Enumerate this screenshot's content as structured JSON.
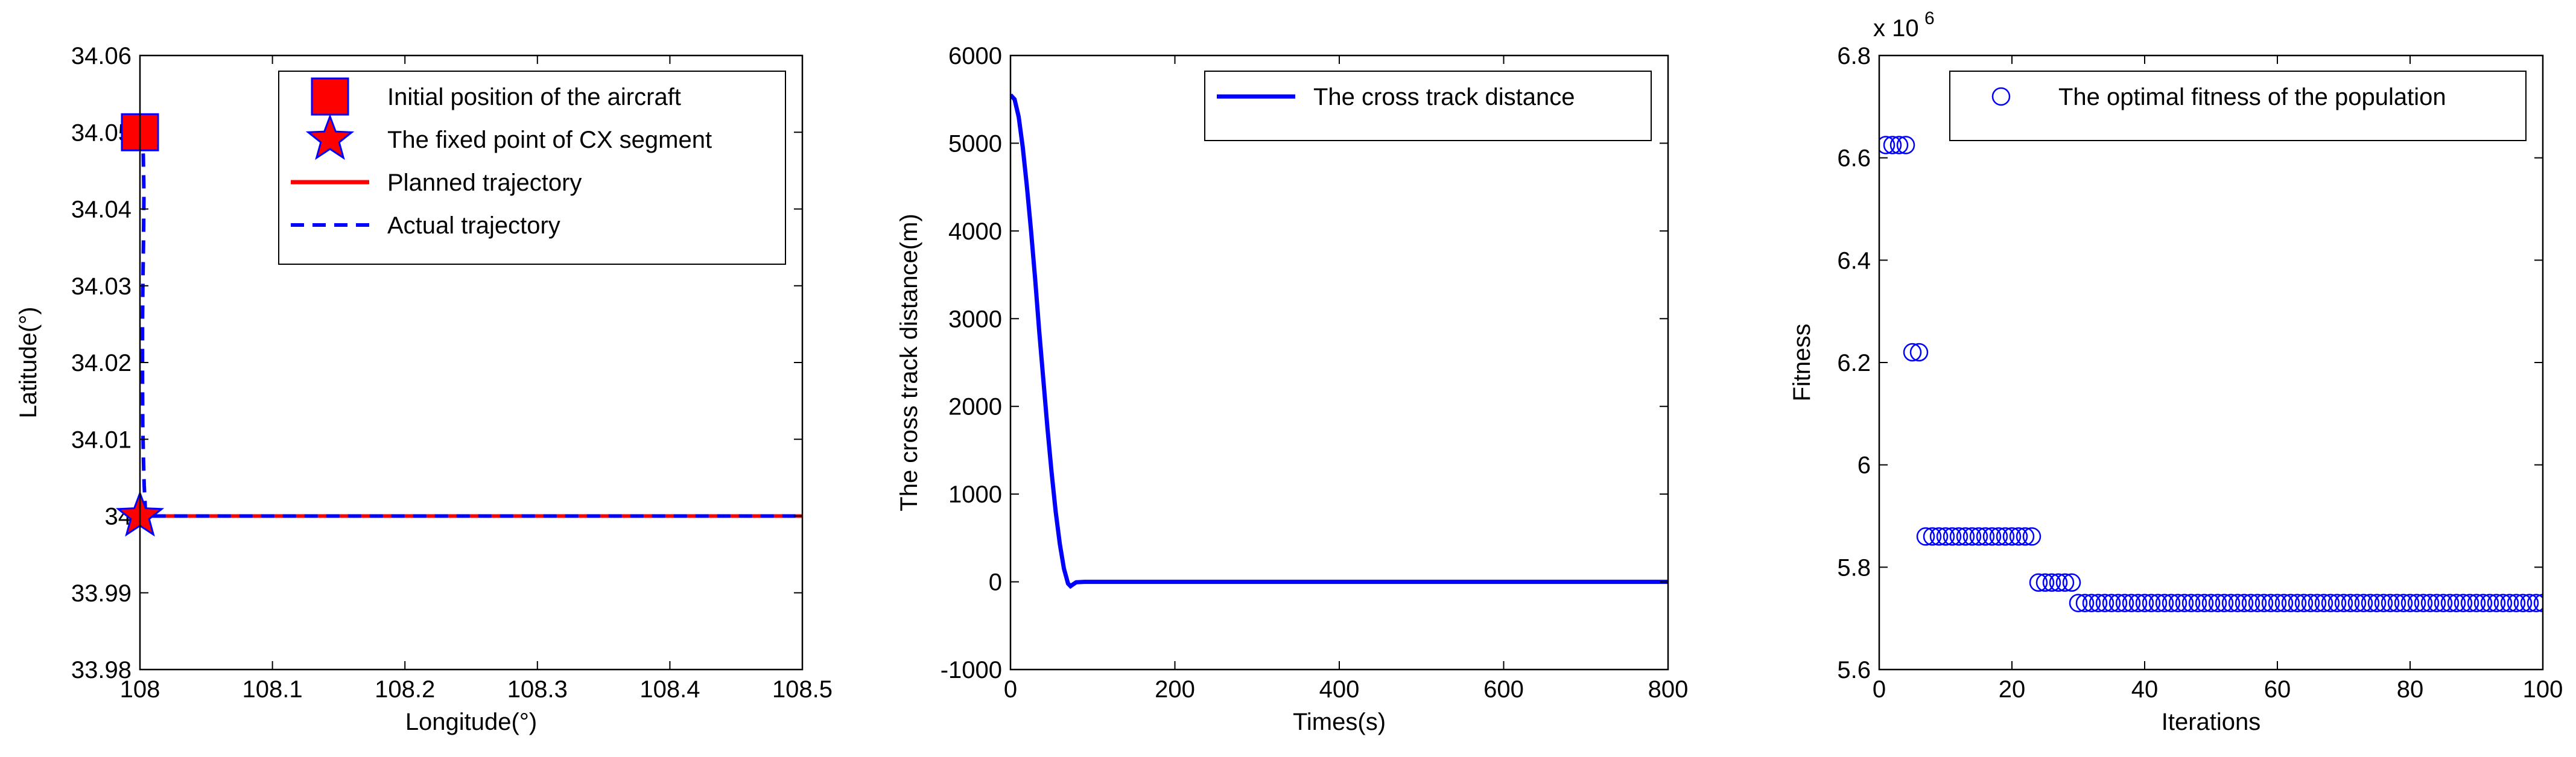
{
  "chart_data": [
    {
      "type": "line",
      "xlabel": "Longitude(°)",
      "ylabel": "Latitude(°)",
      "xlim": [
        108,
        108.5
      ],
      "ylim": [
        33.98,
        34.06
      ],
      "xticks": [
        108,
        108.1,
        108.2,
        108.3,
        108.4,
        108.5
      ],
      "yticks": [
        33.98,
        33.99,
        34,
        34.01,
        34.02,
        34.03,
        34.04,
        34.05,
        34.06
      ],
      "xtick_labels": [
        "108",
        "108.1",
        "108.2",
        "108.3",
        "108.4",
        "108.5"
      ],
      "ytick_labels": [
        "33.98",
        "33.99",
        "34",
        "34.01",
        "34.02",
        "34.03",
        "34.04",
        "34.05",
        "34.06"
      ],
      "grid": false,
      "legend_position": "top-right",
      "legend": [
        {
          "label": "Initial position of the aircraft",
          "marker": "square",
          "color": "#ff0000"
        },
        {
          "label": "The fixed point of CX segment",
          "marker": "star",
          "color": "#ff0000"
        },
        {
          "label": "Planned trajectory",
          "style": "solid",
          "color": "#ff0000"
        },
        {
          "label": "Actual trajectory",
          "style": "dashed",
          "color": "#0000ff"
        }
      ],
      "points": [
        {
          "name": "Initial position of the aircraft",
          "x": 108.0,
          "y": 34.05
        },
        {
          "name": "The fixed point of CX segment",
          "x": 108.0,
          "y": 34.0
        }
      ],
      "series": [
        {
          "name": "Planned trajectory",
          "x": [
            108.0,
            108.5
          ],
          "y": [
            34.0,
            34.0
          ]
        },
        {
          "name": "Actual trajectory",
          "x": [
            108.0,
            108.0015,
            108.0025,
            108.003,
            108.0027,
            108.0022,
            108.0019,
            108.0019,
            108.0021,
            108.0027,
            108.0032,
            108.0038,
            108.004,
            108.0045,
            108.006,
            108.5
          ],
          "y": [
            34.05,
            34.0495,
            34.047,
            34.042,
            34.036,
            34.03,
            34.025,
            34.018,
            34.012,
            34.007,
            34.004,
            34.002,
            34.001,
            34.0,
            34.0,
            34.0
          ]
        }
      ]
    },
    {
      "type": "line",
      "xlabel": "Times(s)",
      "ylabel": "The cross track distance(m)",
      "xlim": [
        0,
        800
      ],
      "ylim": [
        -1000,
        6000
      ],
      "xticks": [
        0,
        200,
        400,
        600,
        800
      ],
      "yticks": [
        -1000,
        0,
        1000,
        2000,
        3000,
        4000,
        5000,
        6000
      ],
      "xtick_labels": [
        "0",
        "200",
        "400",
        "600",
        "800"
      ],
      "ytick_labels": [
        "-1000",
        "0",
        "1000",
        "2000",
        "3000",
        "4000",
        "5000",
        "6000"
      ],
      "grid": false,
      "legend_position": "top-right",
      "legend": [
        {
          "label": "The cross track distance",
          "style": "solid",
          "color": "#0000ff"
        }
      ],
      "series": [
        {
          "name": "The cross track distance",
          "x": [
            0,
            5,
            10,
            15,
            20,
            25,
            30,
            35,
            40,
            45,
            50,
            55,
            60,
            65,
            70,
            73,
            76,
            80,
            90,
            100,
            150,
            200,
            300,
            400,
            500,
            600,
            700,
            800
          ],
          "y": [
            5550,
            5500,
            5300,
            4950,
            4500,
            4000,
            3450,
            2850,
            2300,
            1750,
            1250,
            800,
            430,
            150,
            -20,
            -50,
            -30,
            -5,
            0,
            0,
            0,
            0,
            0,
            0,
            0,
            0,
            0,
            0
          ]
        }
      ]
    },
    {
      "type": "scatter",
      "xlabel": "Iterations",
      "ylabel": "Fitness",
      "y_exponent": "x 10",
      "y_exponent_power": "6",
      "xlim": [
        0,
        100
      ],
      "ylim": [
        5.6,
        6.8
      ],
      "xticks": [
        0,
        20,
        40,
        60,
        80,
        100
      ],
      "yticks": [
        5.6,
        5.8,
        6,
        6.2,
        6.4,
        6.6,
        6.8
      ],
      "xtick_labels": [
        "0",
        "20",
        "40",
        "60",
        "80",
        "100"
      ],
      "ytick_labels": [
        "5.6",
        "5.8",
        "6",
        "6.2",
        "6.4",
        "6.6",
        "6.8"
      ],
      "grid": false,
      "legend_position": "top-right",
      "legend": [
        {
          "label": "The optimal fitness of the population",
          "marker": "circle-open",
          "color": "#0000ff"
        }
      ],
      "series": [
        {
          "name": "The optimal fitness of the population",
          "x": [
            1,
            2,
            3,
            4,
            5,
            6,
            7,
            8,
            9,
            10,
            11,
            12,
            13,
            14,
            15,
            16,
            17,
            18,
            19,
            20,
            21,
            22,
            23,
            24,
            25,
            26,
            27,
            28,
            29,
            30,
            31,
            32,
            33,
            34,
            35,
            36,
            37,
            38,
            39,
            40,
            41,
            42,
            43,
            44,
            45,
            46,
            47,
            48,
            49,
            50,
            51,
            52,
            53,
            54,
            55,
            56,
            57,
            58,
            59,
            60,
            61,
            62,
            63,
            64,
            65,
            66,
            67,
            68,
            69,
            70,
            71,
            72,
            73,
            74,
            75,
            76,
            77,
            78,
            79,
            80,
            81,
            82,
            83,
            84,
            85,
            86,
            87,
            88,
            89,
            90,
            91,
            92,
            93,
            94,
            95,
            96,
            97,
            98,
            99,
            100
          ],
          "y": [
            6.625,
            6.625,
            6.625,
            6.625,
            6.22,
            6.22,
            5.86,
            5.86,
            5.86,
            5.86,
            5.86,
            5.86,
            5.86,
            5.86,
            5.86,
            5.86,
            5.86,
            5.86,
            5.86,
            5.86,
            5.86,
            5.86,
            5.86,
            5.77,
            5.77,
            5.77,
            5.77,
            5.77,
            5.77,
            5.73,
            5.73,
            5.73,
            5.73,
            5.73,
            5.73,
            5.73,
            5.73,
            5.73,
            5.73,
            5.73,
            5.73,
            5.73,
            5.73,
            5.73,
            5.73,
            5.73,
            5.73,
            5.73,
            5.73,
            5.73,
            5.73,
            5.73,
            5.73,
            5.73,
            5.73,
            5.73,
            5.73,
            5.73,
            5.73,
            5.73,
            5.73,
            5.73,
            5.73,
            5.73,
            5.73,
            5.73,
            5.73,
            5.73,
            5.73,
            5.73,
            5.73,
            5.73,
            5.73,
            5.73,
            5.73,
            5.73,
            5.73,
            5.73,
            5.73,
            5.73,
            5.73,
            5.73,
            5.73,
            5.73,
            5.73,
            5.73,
            5.73,
            5.73,
            5.73,
            5.73,
            5.73,
            5.73,
            5.73,
            5.73,
            5.73,
            5.73,
            5.73,
            5.73,
            5.73,
            5.73
          ]
        }
      ]
    }
  ]
}
